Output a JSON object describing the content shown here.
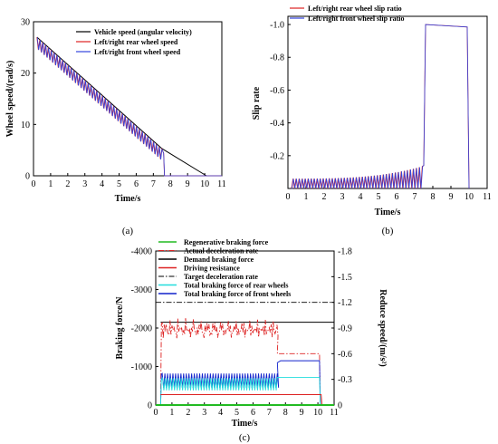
{
  "chart_data": [
    {
      "panel": "a",
      "type": "line",
      "caption": "(a)",
      "xlabel": "Time/s",
      "ylabel": "Wheel speed/(rad/s)",
      "xlim": [
        0,
        11
      ],
      "ylim": [
        0,
        30
      ],
      "xticks": [
        0,
        1,
        2,
        3,
        4,
        5,
        6,
        7,
        8,
        9,
        10,
        11
      ],
      "yticks": [
        0,
        10,
        20,
        30
      ],
      "legend_position": "top-center",
      "series": [
        {
          "name": "Vehicle speed (angular velocity)",
          "color": "#000000",
          "x": [
            0.2,
            7.5,
            10.1
          ],
          "y": [
            27,
            5.3,
            0
          ]
        },
        {
          "name": "Left/right rear wheel speed",
          "color": "#dd2222",
          "pattern": "oscillating dips below vehicle speed, locks at ~7.6 s",
          "x": [
            0.2,
            7.5,
            7.6,
            7.65,
            11
          ],
          "y": [
            27,
            5.2,
            4.4,
            0,
            0
          ]
        },
        {
          "name": "Left/right front wheel speed",
          "color": "#3344dd",
          "pattern": "oscillating dips below vehicle speed, locks at ~7.6 s",
          "x": [
            0.2,
            7.5,
            7.6,
            7.65,
            11
          ],
          "y": [
            27,
            5.2,
            4.4,
            0,
            0
          ]
        }
      ]
    },
    {
      "panel": "b",
      "type": "line",
      "caption": "(b)",
      "xlabel": "Time/s",
      "ylabel": "Slip rate",
      "xlim": [
        0,
        11
      ],
      "ylim": [
        0,
        -1.0
      ],
      "y_inverted": true,
      "xticks": [
        0,
        1,
        2,
        3,
        4,
        5,
        6,
        7,
        8,
        9,
        10,
        11
      ],
      "yticks": [
        -0.2,
        -0.4,
        -0.6,
        -0.8,
        -1.0
      ],
      "legend_position": "top-left",
      "series": [
        {
          "name": "Left/right rear wheel slip ratio",
          "color": "#dd2222",
          "pattern": "oscillating peaks -0.05 to -0.15, jumps to -1.0 at 7.6 s, returns to 0 at ~10 s",
          "x": [
            0.2,
            7.5,
            7.6,
            9.9,
            10.0
          ],
          "y": [
            -0.06,
            -0.14,
            -1.0,
            -0.985,
            0
          ]
        },
        {
          "name": "Left/right front wheel slip ratio",
          "color": "#3344dd",
          "pattern": "same as rear",
          "x": [
            0.2,
            7.5,
            7.6,
            9.9,
            10.0
          ],
          "y": [
            -0.06,
            -0.14,
            -1.0,
            -0.985,
            0
          ]
        }
      ]
    },
    {
      "panel": "c",
      "type": "line",
      "caption": "(c)",
      "xlabel": "Time/s",
      "ylabel": "Braking force/N",
      "y2label": "Reduce speed/(m/s²)",
      "xlim": [
        0,
        11
      ],
      "ylim": [
        0,
        -4000
      ],
      "y2lim": [
        0,
        -1.8
      ],
      "xticks": [
        0,
        1,
        2,
        3,
        4,
        5,
        6,
        7,
        8,
        9,
        10,
        11
      ],
      "yticks": [
        0,
        -1000,
        -2000,
        -3000,
        -4000
      ],
      "y2ticks": [
        0,
        -0.3,
        -0.6,
        -0.9,
        -1.2,
        -1.5,
        -1.8
      ],
      "legend_position": "top-left",
      "series": [
        {
          "name": "Regenerative braking force",
          "color": "#22bb22",
          "style": "solid",
          "x": [
            0,
            11
          ],
          "y": [
            0,
            0
          ]
        },
        {
          "name": "Actual deceleration rate",
          "color": "#dd2222",
          "style": "dash-dot",
          "axis": "right",
          "pattern": "noisy ~-0.9 to -1.0 until 7.5 s, then -0.6 until ~10.1 s, then 0"
        },
        {
          "name": "Demand braking force",
          "color": "#000000",
          "style": "solid",
          "x": [
            0.3,
            11
          ],
          "y": [
            -2150,
            -2150
          ]
        },
        {
          "name": "Driving resistance",
          "color": "#dd2222",
          "style": "solid",
          "x": [
            0.3,
            10.2,
            10.25
          ],
          "y": [
            -270,
            -270,
            0
          ]
        },
        {
          "name": "Target deceleration rate",
          "color": "#000000",
          "style": "dash-dot",
          "axis": "right",
          "x": [
            0,
            11
          ],
          "y": [
            -1.2,
            -1.2
          ]
        },
        {
          "name": "Total braking force of rear wheels",
          "color": "#22dddd",
          "style": "solid",
          "pattern": "oscillating ~-400 to -700 until 7.5 s, then ~-720"
        },
        {
          "name": "Total braking force of front wheels",
          "color": "#1122cc",
          "style": "solid",
          "pattern": "oscillating ~-450 to -800 until 7.5 s, then ~-1150 until 10.1 s"
        }
      ]
    }
  ]
}
